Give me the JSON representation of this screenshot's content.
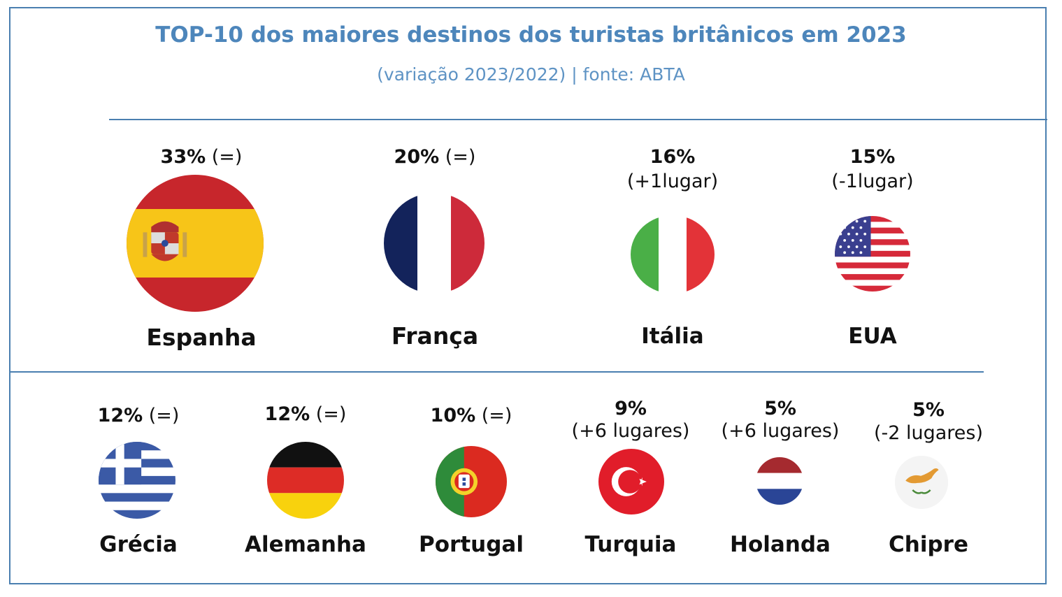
{
  "header": {
    "title": "TOP-10 dos maiores destinos dos turistas britânicos em 2023",
    "subtitle": "(variação 2023/2022) | fonte: ABTA"
  },
  "top_row": [
    {
      "pct": "33%",
      "change": "(=)",
      "country": "Espanha",
      "flag_icon": "spain-flag-icon"
    },
    {
      "pct": "20%",
      "change": "(=)",
      "country": "França",
      "flag_icon": "france-flag-icon"
    },
    {
      "pct": "16%",
      "change": "(+1lugar)",
      "country": "Itália",
      "flag_icon": "italy-flag-icon"
    },
    {
      "pct": "15%",
      "change": "(-1lugar)",
      "country": "EUA",
      "flag_icon": "usa-flag-icon"
    }
  ],
  "bottom_row": [
    {
      "pct": "12%",
      "change": "(=)",
      "country": "Grécia",
      "flag_icon": "greece-flag-icon"
    },
    {
      "pct": "12%",
      "change": "(=)",
      "country": "Alemanha",
      "flag_icon": "germany-flag-icon"
    },
    {
      "pct": "10%",
      "change": "(=)",
      "country": "Portugal",
      "flag_icon": "portugal-flag-icon"
    },
    {
      "pct": "9%",
      "change": "(+6 lugares)",
      "country": "Turquia",
      "flag_icon": "turkey-flag-icon"
    },
    {
      "pct": "5%",
      "change": "(+6 lugares)",
      "country": "Holanda",
      "flag_icon": "netherlands-flag-icon"
    },
    {
      "pct": "5%",
      "change": "(-2 lugares)",
      "country": "Chipre",
      "flag_icon": "cyprus-flag-icon"
    }
  ],
  "colors": {
    "accent": "#4a7fb0",
    "title": "#4d86bb"
  }
}
